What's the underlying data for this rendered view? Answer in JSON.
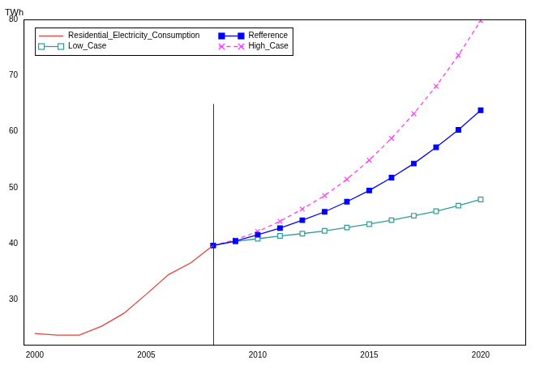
{
  "chart_data": {
    "type": "line",
    "y_label": "TWh",
    "x": [
      2000,
      2001,
      2002,
      2003,
      2004,
      2005,
      2006,
      2007,
      2008,
      2009,
      2010,
      2011,
      2012,
      2013,
      2014,
      2015,
      2016,
      2017,
      2018,
      2019,
      2020
    ],
    "xlim": [
      1999.5,
      2022
    ],
    "xticks": [
      2000,
      2005,
      2010,
      2015,
      2020
    ],
    "ylim": [
      22,
      80
    ],
    "yticks": [
      30,
      40,
      50,
      60,
      70,
      80
    ],
    "grid": false,
    "legend": "upper left",
    "series": [
      {
        "name": "Residential_Electricity_Consumption",
        "color": "#e8413c",
        "marker": "none",
        "line_style": "solid",
        "values": [
          24.0,
          23.7,
          23.7,
          25.3,
          27.6,
          31.0,
          34.5,
          36.6,
          39.7,
          null,
          null,
          null,
          null,
          null,
          null,
          null,
          null,
          null,
          null,
          null,
          null
        ]
      },
      {
        "name": "Refference",
        "color": "#0000ff",
        "marker": "square",
        "line_style": "solid",
        "values": [
          null,
          null,
          null,
          null,
          null,
          null,
          null,
          null,
          39.7,
          40.5,
          41.6,
          42.8,
          44.2,
          45.7,
          47.5,
          49.5,
          51.8,
          54.3,
          57.2,
          60.3,
          63.8
        ]
      },
      {
        "name": "Low_Case",
        "color": "#2e9c9c",
        "marker": "square_open",
        "line_style": "solid",
        "values": [
          null,
          null,
          null,
          null,
          null,
          null,
          null,
          null,
          39.7,
          40.4,
          40.9,
          41.4,
          41.8,
          42.3,
          42.9,
          43.5,
          44.2,
          45.0,
          45.8,
          46.8,
          47.9
        ]
      },
      {
        "name": "High_Case",
        "color": "#ff3cff",
        "marker": "x",
        "line_style": "dashed",
        "values": [
          null,
          null,
          null,
          null,
          null,
          null,
          null,
          null,
          39.7,
          40.7,
          42.2,
          44.0,
          46.2,
          48.6,
          51.5,
          54.9,
          58.8,
          63.2,
          68.1,
          73.6,
          79.8
        ]
      }
    ]
  }
}
